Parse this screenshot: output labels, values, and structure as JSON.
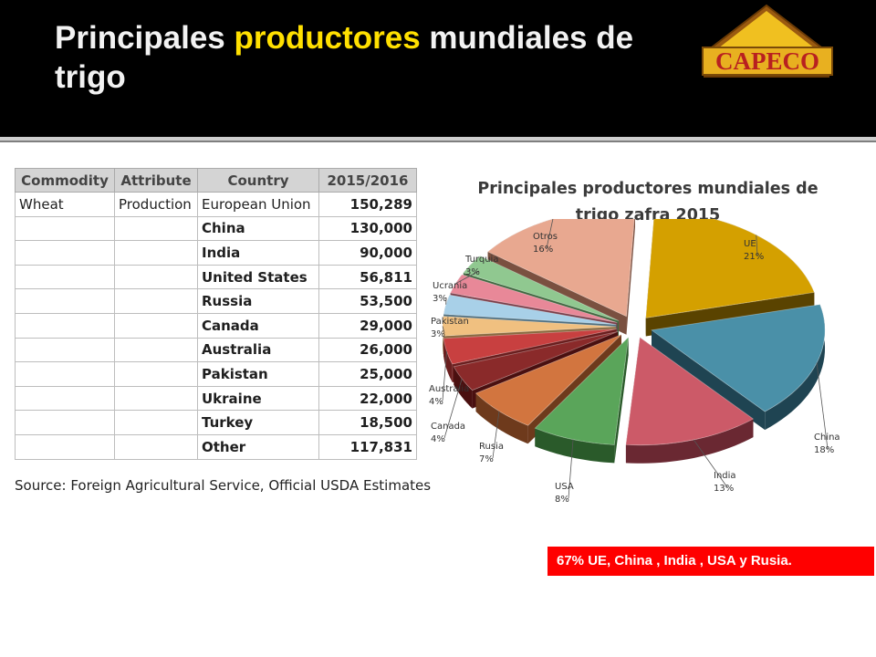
{
  "header": {
    "title_part1": "Principales ",
    "title_highlight": "productores",
    "title_part2": " mundiales de trigo",
    "logo_text": "CAPECO"
  },
  "table": {
    "headers": [
      "Commodity",
      "Attribute",
      "Country",
      "2015/2016"
    ],
    "commodity": "Wheat",
    "attribute": "Production",
    "rows": [
      {
        "country": "European Union",
        "value": "150,289"
      },
      {
        "country": "China",
        "value": "130,000"
      },
      {
        "country": "India",
        "value": "90,000"
      },
      {
        "country": "United States",
        "value": "56,811"
      },
      {
        "country": "Russia",
        "value": "53,500"
      },
      {
        "country": "Canada",
        "value": "29,000"
      },
      {
        "country": "Australia",
        "value": "26,000"
      },
      {
        "country": "Pakistan",
        "value": "25,000"
      },
      {
        "country": "Ukraine",
        "value": "22,000"
      },
      {
        "country": "Turkey",
        "value": "18,500"
      },
      {
        "country": "Other",
        "value": "117,831"
      }
    ],
    "source": "Source: Foreign Agricultural Service, Official USDA Estimates"
  },
  "chart_data": {
    "type": "pie",
    "title": "Principales productores mundiales de trigo zafra 2015",
    "slices": [
      {
        "label": "UE",
        "pct_label": "21%",
        "value": 21,
        "color": "#d4a000",
        "dark": "#5a4300"
      },
      {
        "label": "China",
        "pct_label": "18%",
        "value": 18,
        "color": "#4a90a8",
        "dark": "#1f4452"
      },
      {
        "label": "India",
        "pct_label": "13%",
        "value": 13,
        "color": "#cc5a68",
        "dark": "#6a2832"
      },
      {
        "label": "USA",
        "pct_label": "8%",
        "value": 8,
        "color": "#5aa55a",
        "dark": "#2a5a2a"
      },
      {
        "label": "Rusia",
        "pct_label": "7%",
        "value": 7,
        "color": "#d2753f",
        "dark": "#6e3a1c"
      },
      {
        "label": "Canada",
        "pct_label": "4%",
        "value": 4,
        "color": "#8a2a2a",
        "dark": "#4a1010"
      },
      {
        "label": "Australia",
        "pct_label": "4%",
        "value": 4,
        "color": "#c84040",
        "dark": "#6a1e1e"
      },
      {
        "label": "Pakistan",
        "pct_label": "3%",
        "value": 3,
        "color": "#f0c080",
        "dark": "#8a6a40"
      },
      {
        "label": "Ucrania",
        "pct_label": "3%",
        "value": 3,
        "color": "#a8d0e8",
        "dark": "#507080"
      },
      {
        "label": "Turquia",
        "pct_label": "3%",
        "value": 3,
        "color": "#e88898",
        "dark": "#7a3e4a"
      },
      {
        "label": "Otros",
        "pct_label": "16%",
        "value": 16,
        "color": "#e8a890",
        "dark": "#7a5040"
      }
    ],
    "extra_slice": {
      "label": "",
      "value": 3,
      "color": "#90c890",
      "dark": "#406840"
    }
  },
  "callout": "67% UE, China , India , USA y Rusia."
}
